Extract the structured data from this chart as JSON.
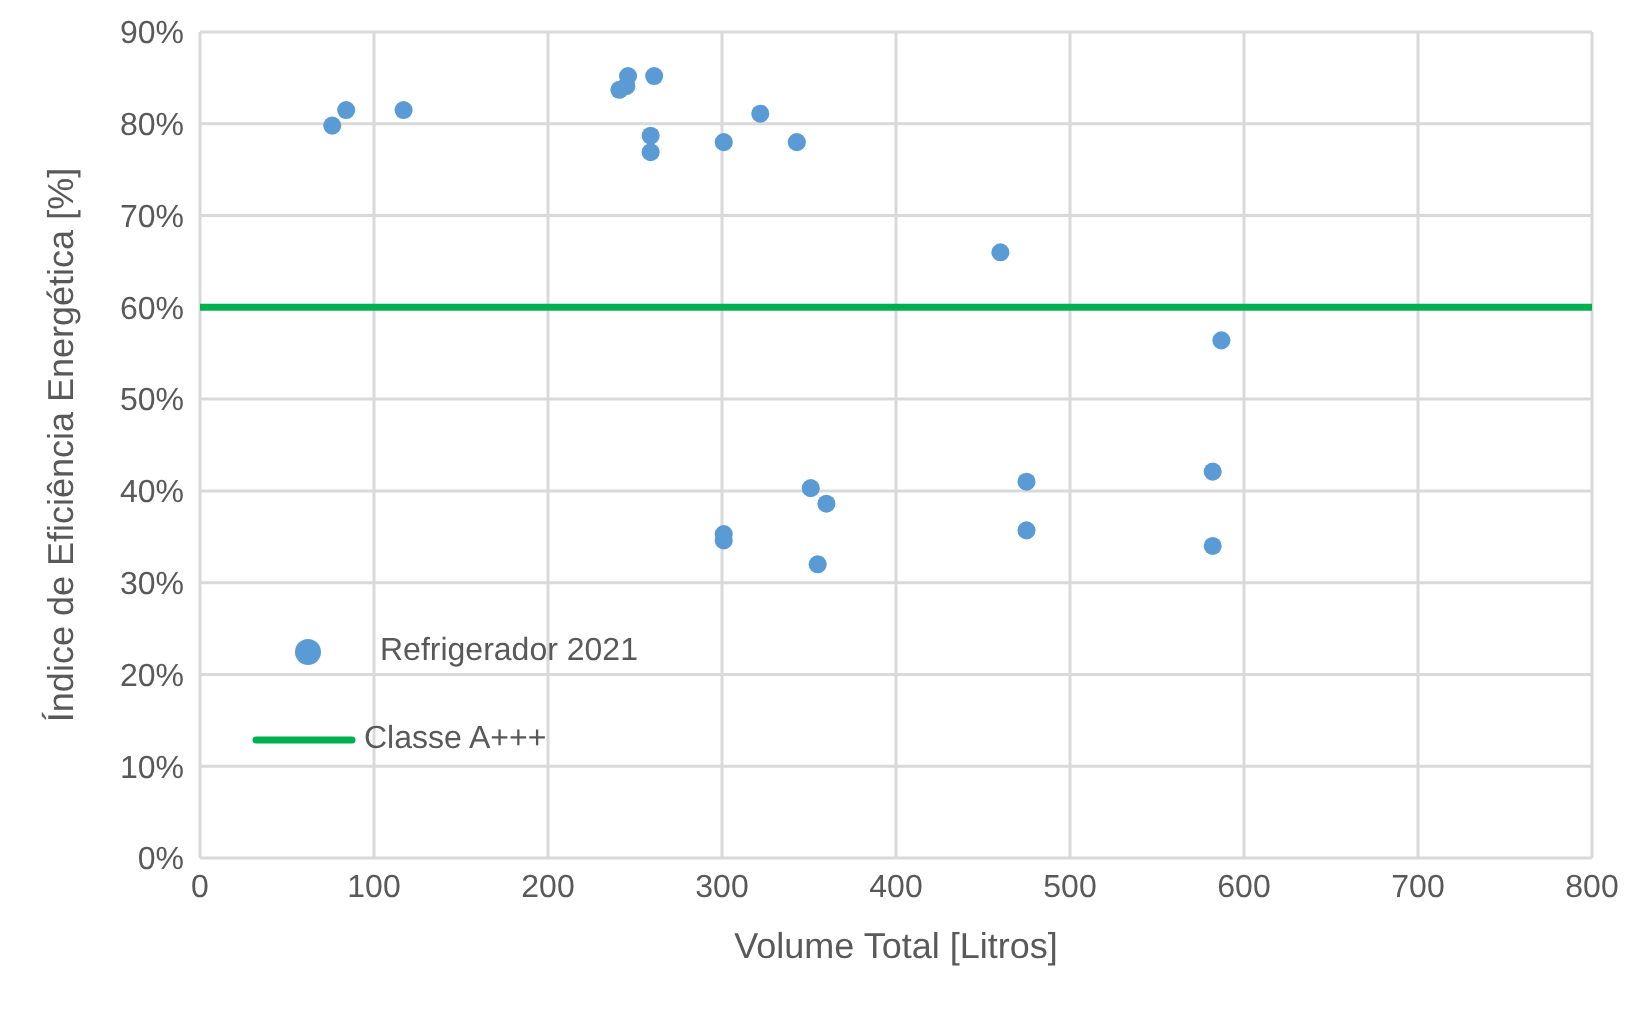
{
  "chart_data": {
    "type": "scatter",
    "xlabel": "Volume Total [Litros]",
    "ylabel": "Índice de Eficiência Energética  [%]",
    "xlim": [
      0,
      800
    ],
    "xticks": [
      0,
      100,
      200,
      300,
      400,
      500,
      600,
      700,
      800
    ],
    "ylim": [
      0,
      90
    ],
    "yticks": [
      {
        "value": 0,
        "label": "0%"
      },
      {
        "value": 10,
        "label": "10%"
      },
      {
        "value": 20,
        "label": "20%"
      },
      {
        "value": 30,
        "label": "30%"
      },
      {
        "value": 40,
        "label": "40%"
      },
      {
        "value": 50,
        "label": "50%"
      },
      {
        "value": 60,
        "label": "60%"
      },
      {
        "value": 70,
        "label": "70%"
      },
      {
        "value": 80,
        "label": "80%"
      },
      {
        "value": 90,
        "label": "90%"
      }
    ],
    "grid": true,
    "legend": "bottom left",
    "series": [
      {
        "name": "Refrigerador 2021",
        "marker": "circle",
        "color": "#5b9bd5",
        "x": [
          76,
          84,
          117,
          241,
          245,
          246,
          261,
          259,
          259,
          301,
          322,
          343,
          460,
          587,
          301,
          301,
          351,
          360,
          355,
          475,
          475,
          582,
          582
        ],
        "values": [
          79.8,
          81.5,
          81.5,
          83.7,
          84.1,
          85.2,
          85.2,
          78.7,
          76.9,
          78.0,
          81.1,
          78.0,
          66.0,
          56.4,
          35.3,
          34.6,
          40.3,
          38.6,
          32.0,
          41.0,
          35.7,
          42.1,
          34.0
        ]
      },
      {
        "name": "Classe A+++",
        "type": "line",
        "color": "#00b050",
        "line_style": "solid",
        "x": [
          0,
          800
        ],
        "values": [
          60,
          60
        ]
      }
    ]
  }
}
